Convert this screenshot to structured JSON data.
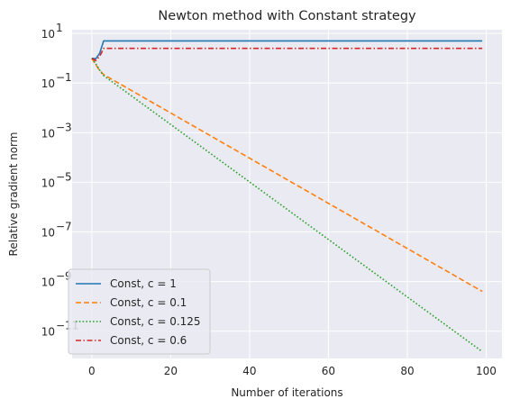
{
  "chart_data": {
    "type": "line",
    "title": "Newton method with Constant strategy",
    "xlabel": "Number of iterations",
    "ylabel": "Relative gradient norm",
    "xlim": [
      -5,
      104
    ],
    "ylim_log10": [
      -12.1,
      1.15
    ],
    "yscale": "log",
    "xticks": [
      0,
      20,
      40,
      60,
      80,
      100
    ],
    "xtick_labels": [
      "0",
      "20",
      "40",
      "60",
      "80",
      "100"
    ],
    "yticks_log10": [
      1,
      -1,
      -3,
      -5,
      -7,
      -9,
      -11
    ],
    "ytick_bases": [
      "10",
      "10",
      "10",
      "10",
      "10",
      "10",
      "10"
    ],
    "ytick_exponents": [
      "1",
      "−1",
      "−3",
      "−5",
      "−7",
      "−9",
      "−11"
    ],
    "grid": true,
    "legend_position": "lower-left",
    "series": [
      {
        "name": "Const, c = 1",
        "color": "#1f77b4",
        "dash": "solid",
        "x": [
          0,
          1,
          2,
          3,
          99
        ],
        "y": [
          1.0,
          0.95,
          1.6,
          5.0,
          5.0
        ]
      },
      {
        "name": "Const, c = 0.1",
        "color": "#ff7f0e",
        "dash": "dashed",
        "x": [
          0,
          1,
          2,
          3,
          99
        ],
        "y": [
          1.0,
          0.55,
          0.32,
          0.22,
          4e-10
        ]
      },
      {
        "name": "Const, c = 0.125",
        "color": "#2ca02c",
        "dash": "dotted",
        "x": [
          0,
          1,
          2,
          3,
          99
        ],
        "y": [
          1.0,
          0.6,
          0.33,
          0.2,
          1.5e-12
        ]
      },
      {
        "name": "Const, c = 0.6",
        "color": "#d62728",
        "dash": "dashdot",
        "x": [
          0,
          1,
          2,
          3,
          99
        ],
        "y": [
          1.0,
          0.8,
          1.2,
          2.5,
          2.5
        ]
      }
    ]
  }
}
